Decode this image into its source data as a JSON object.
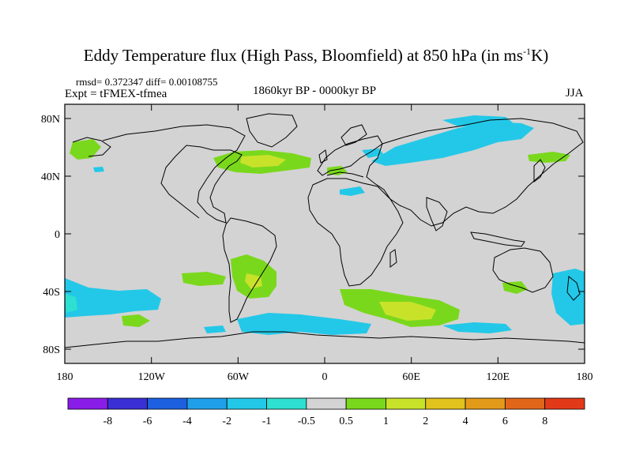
{
  "title": {
    "main": "Eddy Temperature flux (High Pass, Bloomfield) at 850 hPa (in ms",
    "sup": "-1",
    "tail": "K)"
  },
  "stats": "rmsd= 0.372347 diff= 0.00108755",
  "expt": "Expt = tFMEX-tfmea",
  "period": "1860kyr BP - 0000kyr BP",
  "season": "JJA",
  "axes": {
    "lon_ticks": [
      "180",
      "120W",
      "60W",
      "0",
      "60E",
      "120E",
      "180"
    ],
    "lat_ticks": [
      "80N",
      "40N",
      "0",
      "40S",
      "80S"
    ]
  },
  "colorbar": {
    "colors": [
      "#8a1ce8",
      "#3a2fd4",
      "#1c60e0",
      "#1f9fe8",
      "#23c8e8",
      "#2ee0d0",
      "#d3d3d3",
      "#7ad81c",
      "#c8e22a",
      "#e2c21c",
      "#e29a18",
      "#e2661a",
      "#e23a18"
    ],
    "labels": [
      "-8",
      "-6",
      "-4",
      "-2",
      "-1",
      "-0.5",
      "0.5",
      "1",
      "2",
      "4",
      "6",
      "8"
    ]
  },
  "fill_colors": {
    "land_ocean": "#d3d3d3",
    "neg_strong": "#23c8e8",
    "neg_weak": "#2ee0d0",
    "pos_weak": "#7ad81c",
    "pos_mid": "#c8e22a"
  }
}
